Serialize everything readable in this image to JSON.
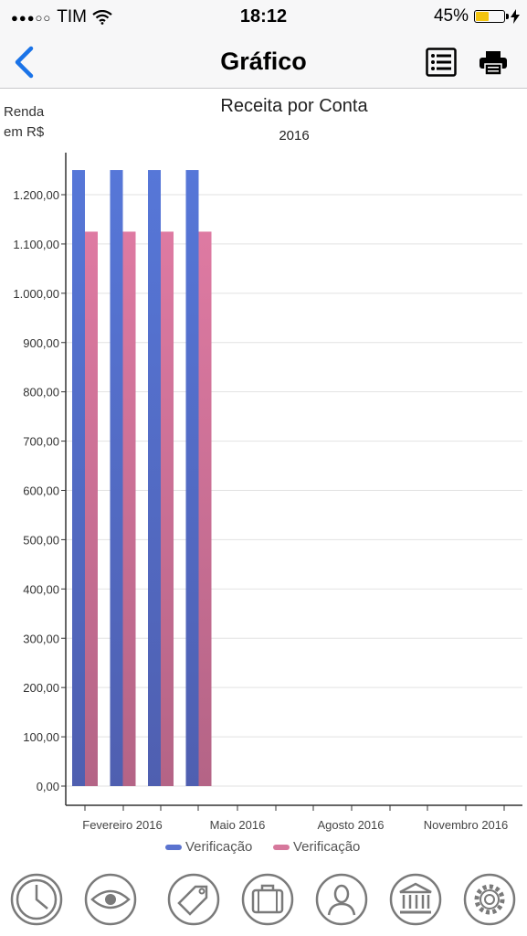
{
  "status_bar": {
    "signal_dots": "●●●○○",
    "carrier": "TIM",
    "time": "18:12",
    "battery_percent": "45%",
    "battery_level": 0.45,
    "icons": [
      "wifi-icon",
      "battery-icon",
      "charging-bolt-icon"
    ]
  },
  "nav": {
    "title": "Gráfico",
    "back_icon": "chevron-left-icon",
    "list_icon": "list-icon",
    "print_icon": "printer-icon"
  },
  "chart_data": {
    "type": "bar",
    "title": "Receita por Conta",
    "subtitle": "2016",
    "ylabel_lines": [
      "Renda",
      "em R$"
    ],
    "ylim": [
      0,
      1250
    ],
    "yticks": [
      0,
      100,
      200,
      300,
      400,
      500,
      600,
      700,
      800,
      900,
      1000,
      1100,
      1200
    ],
    "ytick_labels": [
      "0,00",
      "100,00",
      "200,00",
      "300,00",
      "400,00",
      "500,00",
      "600,00",
      "700,00",
      "800,00",
      "900,00",
      "1.000,00",
      "1.100,00",
      "1.200,00"
    ],
    "x_tick_labels": [
      "Fevereiro 2016",
      "Maio 2016",
      "Agosto 2016",
      "Novembro 2016"
    ],
    "series": [
      {
        "name": "Verificação",
        "color": "#5b73cf",
        "values": [
          1250,
          1250,
          1250,
          1250
        ]
      },
      {
        "name": "Verificação",
        "color": "#d6789c",
        "values": [
          1125,
          1125,
          1125,
          1125
        ]
      }
    ],
    "grid": true,
    "legend_position": "bottom"
  },
  "tab_bar": {
    "items": [
      {
        "icon": "clock-icon"
      },
      {
        "icon": "eye-icon"
      },
      {
        "icon": "price-tag-icon"
      },
      {
        "icon": "briefcase-icon"
      },
      {
        "icon": "person-icon"
      },
      {
        "icon": "bank-icon"
      },
      {
        "icon": "gear-icon"
      }
    ]
  },
  "colors": {
    "accent": "#1a73e8",
    "series_blue": "#5b73cf",
    "series_pink": "#d6789c",
    "tab_icon": "#7a7a7a"
  }
}
